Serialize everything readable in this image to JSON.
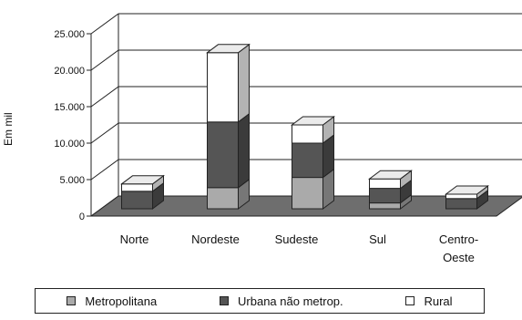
{
  "chart_data": {
    "type": "bar",
    "stacked": true,
    "three_d": true,
    "ylabel": "Em mil",
    "ylim": [
      0,
      25000
    ],
    "yticks": [
      "0",
      "5.000",
      "10.000",
      "15.000",
      "20.000",
      "25.000"
    ],
    "ytick_values": [
      0,
      5000,
      10000,
      15000,
      20000,
      25000
    ],
    "categories": [
      [
        "Norte"
      ],
      [
        "Nordeste"
      ],
      [
        "Sudeste"
      ],
      [
        "Sul"
      ],
      [
        "Centro-",
        "Oeste"
      ]
    ],
    "grid": true,
    "legend_position": "bottom",
    "series": [
      {
        "name": "Metropolitana",
        "color": "#aaaaaa",
        "values": [
          0,
          2900,
          4300,
          800,
          0
        ]
      },
      {
        "name": "Urbana não metrop.",
        "color": "#555555",
        "values": [
          2400,
          9000,
          4700,
          2000,
          1400
        ]
      },
      {
        "name": "Rural",
        "color": "#ffffff",
        "values": [
          1000,
          9500,
          2500,
          1300,
          600
        ]
      }
    ]
  }
}
